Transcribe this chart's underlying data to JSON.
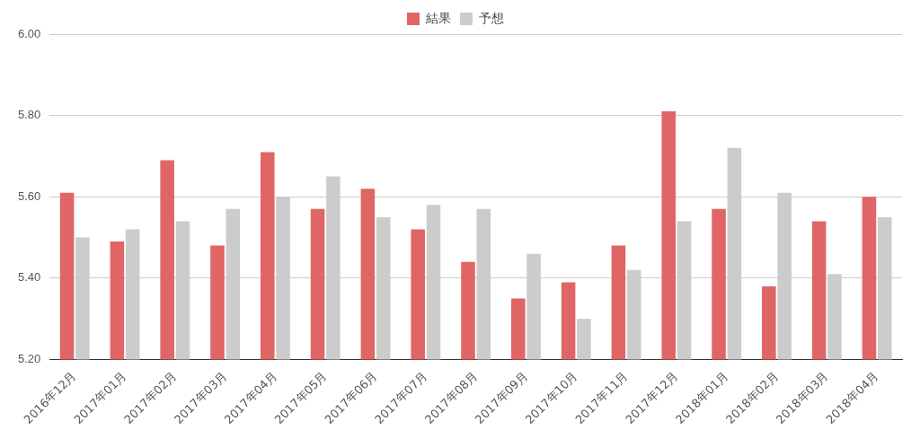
{
  "chart_data": {
    "type": "bar",
    "categories": [
      "2016年12月",
      "2017年01月",
      "2017年02月",
      "2017年03月",
      "2017年04月",
      "2017年05月",
      "2017年06月",
      "2017年07月",
      "2017年08月",
      "2017年09月",
      "2017年10月",
      "2017年11月",
      "2017年12月",
      "2018年01月",
      "2018年02月",
      "2018年03月",
      "2018年04月"
    ],
    "series": [
      {
        "name": "結果",
        "color": "#e06666",
        "values": [
          5.61,
          5.49,
          5.69,
          5.48,
          5.71,
          5.57,
          5.62,
          5.52,
          5.44,
          5.35,
          5.39,
          5.48,
          5.81,
          5.57,
          5.38,
          5.54,
          5.6
        ]
      },
      {
        "name": "予想",
        "color": "#cccccc",
        "values": [
          5.5,
          5.52,
          5.54,
          5.57,
          5.6,
          5.65,
          5.55,
          5.58,
          5.57,
          5.46,
          5.3,
          5.42,
          5.54,
          5.72,
          5.61,
          5.41,
          5.55
        ]
      }
    ],
    "ylim": [
      5.2,
      6.0
    ],
    "yticks": [
      {
        "value": 5.2,
        "label": "5.20"
      },
      {
        "value": 5.4,
        "label": "5.40"
      },
      {
        "value": 5.6,
        "label": "5.60"
      },
      {
        "value": 5.8,
        "label": "5.80"
      },
      {
        "value": 6.0,
        "label": "6.00"
      }
    ],
    "grid": "y",
    "legend": "top"
  }
}
